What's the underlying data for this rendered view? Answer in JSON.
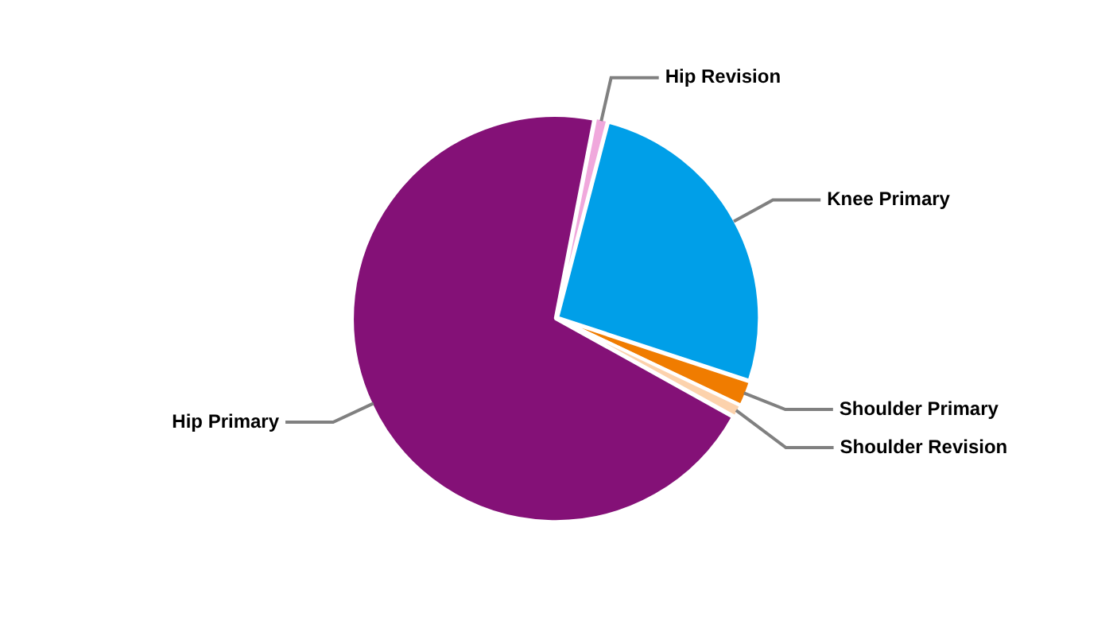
{
  "chart_data": {
    "type": "pie",
    "categories": [
      "Hip Revision",
      "Knee Primary",
      "Shoulder Primary",
      "Shoulder Revision",
      "Hip Primary"
    ],
    "values": [
      1,
      26,
      2,
      1,
      70
    ],
    "colors": [
      "#f0a8dc",
      "#009fe8",
      "#f07c00",
      "#fcd2ac",
      "#841177"
    ],
    "legend": false
  }
}
